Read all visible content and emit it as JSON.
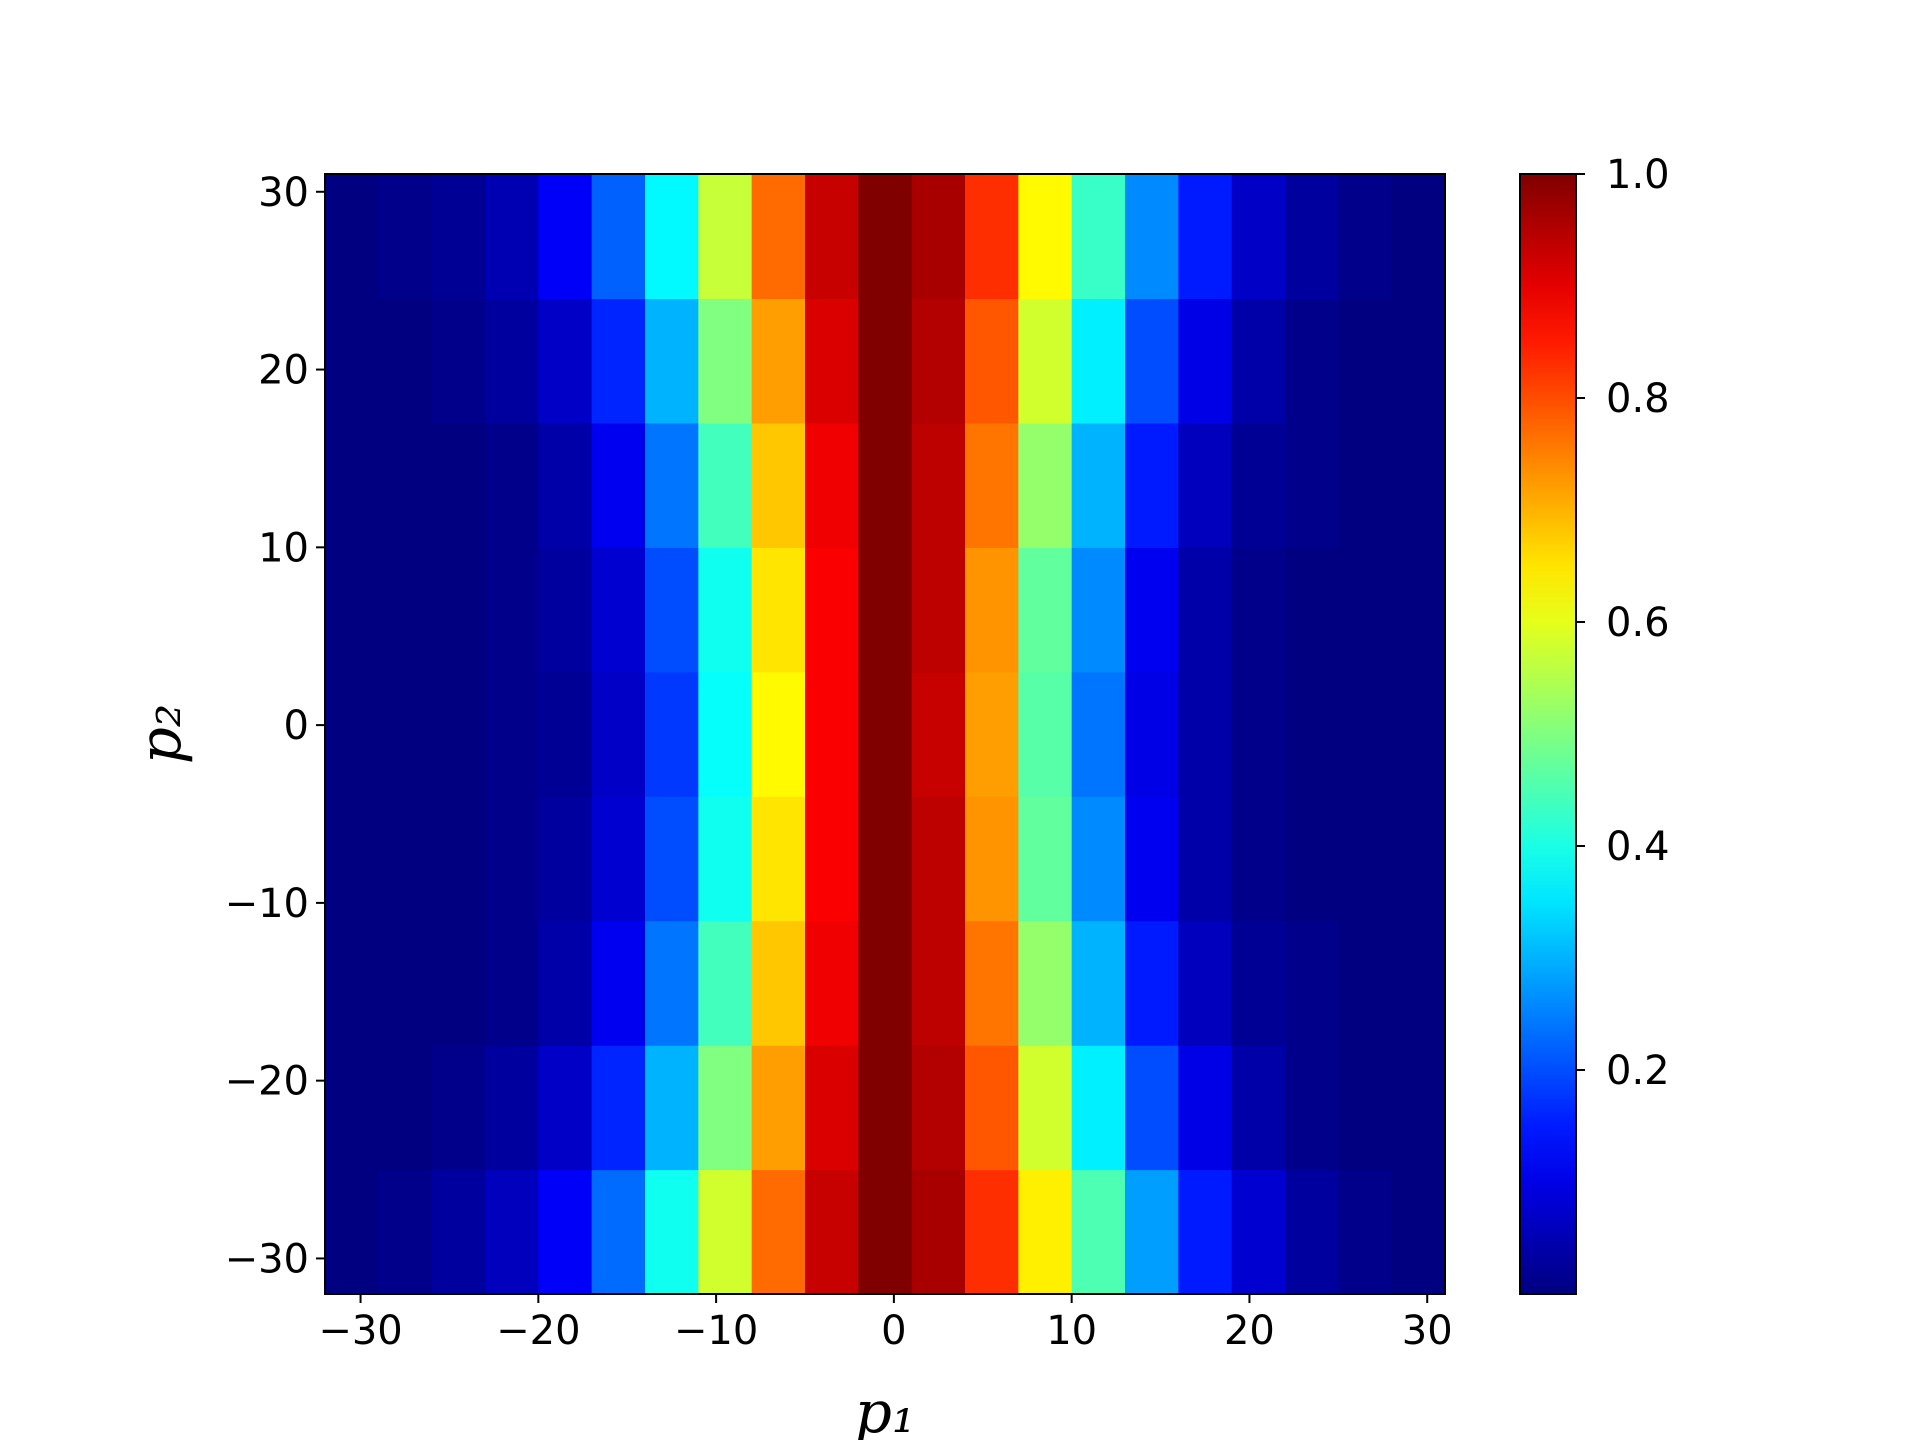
{
  "chart_data": {
    "type": "heatmap",
    "xlabel": "p₁",
    "ylabel": "p₂",
    "xlim": [
      -32,
      31
    ],
    "ylim": [
      -32,
      31
    ],
    "xticks": [
      {
        "value": -30,
        "label": "−30"
      },
      {
        "value": -20,
        "label": "−20"
      },
      {
        "value": -10,
        "label": "−10"
      },
      0,
      10,
      20,
      30
    ],
    "yticks": [
      {
        "value": -30,
        "label": "−30"
      },
      {
        "value": -20,
        "label": "−20"
      },
      {
        "value": -10,
        "label": "−10"
      },
      0,
      10,
      20,
      30
    ],
    "colormap": "jet",
    "clim": [
      0,
      1
    ],
    "cticks": [
      0.2,
      0.4,
      0.6,
      0.8,
      {
        "value": 1,
        "label": "1.0"
      }
    ],
    "x": [
      -30.5,
      -27.5,
      -24.5,
      -21.5,
      -18.5,
      -15.5,
      -12.5,
      -9.5,
      -6.5,
      -3.5,
      -0.5,
      2.5,
      5.5,
      8.5,
      11.5,
      14.5,
      17.5,
      20.5,
      23.5,
      26.5,
      29.5
    ],
    "y": [
      -28.5,
      -21.5,
      -14.5,
      -7.5,
      -0.5,
      6.5,
      13.5,
      20.5,
      27.5
    ],
    "values": [
      [
        0.0,
        0.01,
        0.03,
        0.06,
        0.12,
        0.23,
        0.39,
        0.58,
        0.77,
        0.93,
        1.0,
        0.96,
        0.83,
        0.64,
        0.45,
        0.28,
        0.15,
        0.08,
        0.03,
        0.01,
        0.0
      ],
      [
        0.0,
        0.0,
        0.01,
        0.03,
        0.07,
        0.16,
        0.3,
        0.5,
        0.72,
        0.91,
        1.0,
        0.95,
        0.79,
        0.58,
        0.36,
        0.2,
        0.1,
        0.04,
        0.01,
        0.0,
        0.0
      ],
      [
        0.0,
        0.0,
        0.0,
        0.01,
        0.04,
        0.11,
        0.24,
        0.44,
        0.68,
        0.89,
        1.0,
        0.94,
        0.76,
        0.52,
        0.3,
        0.15,
        0.06,
        0.02,
        0.01,
        0.0,
        0.0
      ],
      [
        0.0,
        0.0,
        0.0,
        0.01,
        0.03,
        0.08,
        0.2,
        0.39,
        0.65,
        0.88,
        1.0,
        0.94,
        0.73,
        0.47,
        0.26,
        0.11,
        0.04,
        0.01,
        0.0,
        0.0,
        0.0
      ],
      [
        0.0,
        0.0,
        0.0,
        0.01,
        0.02,
        0.07,
        0.18,
        0.38,
        0.63,
        0.88,
        1.0,
        0.93,
        0.72,
        0.46,
        0.24,
        0.1,
        0.04,
        0.01,
        0.0,
        0.0,
        0.0
      ],
      [
        0.0,
        0.0,
        0.0,
        0.01,
        0.03,
        0.08,
        0.2,
        0.39,
        0.65,
        0.88,
        1.0,
        0.94,
        0.73,
        0.47,
        0.26,
        0.11,
        0.04,
        0.01,
        0.0,
        0.0,
        0.0
      ],
      [
        0.0,
        0.0,
        0.0,
        0.01,
        0.04,
        0.11,
        0.24,
        0.44,
        0.68,
        0.89,
        1.0,
        0.94,
        0.76,
        0.52,
        0.3,
        0.15,
        0.06,
        0.02,
        0.01,
        0.0,
        0.0
      ],
      [
        0.0,
        0.0,
        0.01,
        0.03,
        0.07,
        0.16,
        0.3,
        0.5,
        0.72,
        0.91,
        1.0,
        0.95,
        0.79,
        0.58,
        0.36,
        0.2,
        0.1,
        0.04,
        0.01,
        0.0,
        0.0
      ],
      [
        0.0,
        0.01,
        0.02,
        0.05,
        0.12,
        0.22,
        0.37,
        0.57,
        0.77,
        0.93,
        1.0,
        0.96,
        0.83,
        0.63,
        0.43,
        0.26,
        0.15,
        0.07,
        0.03,
        0.01,
        0.0
      ]
    ]
  }
}
